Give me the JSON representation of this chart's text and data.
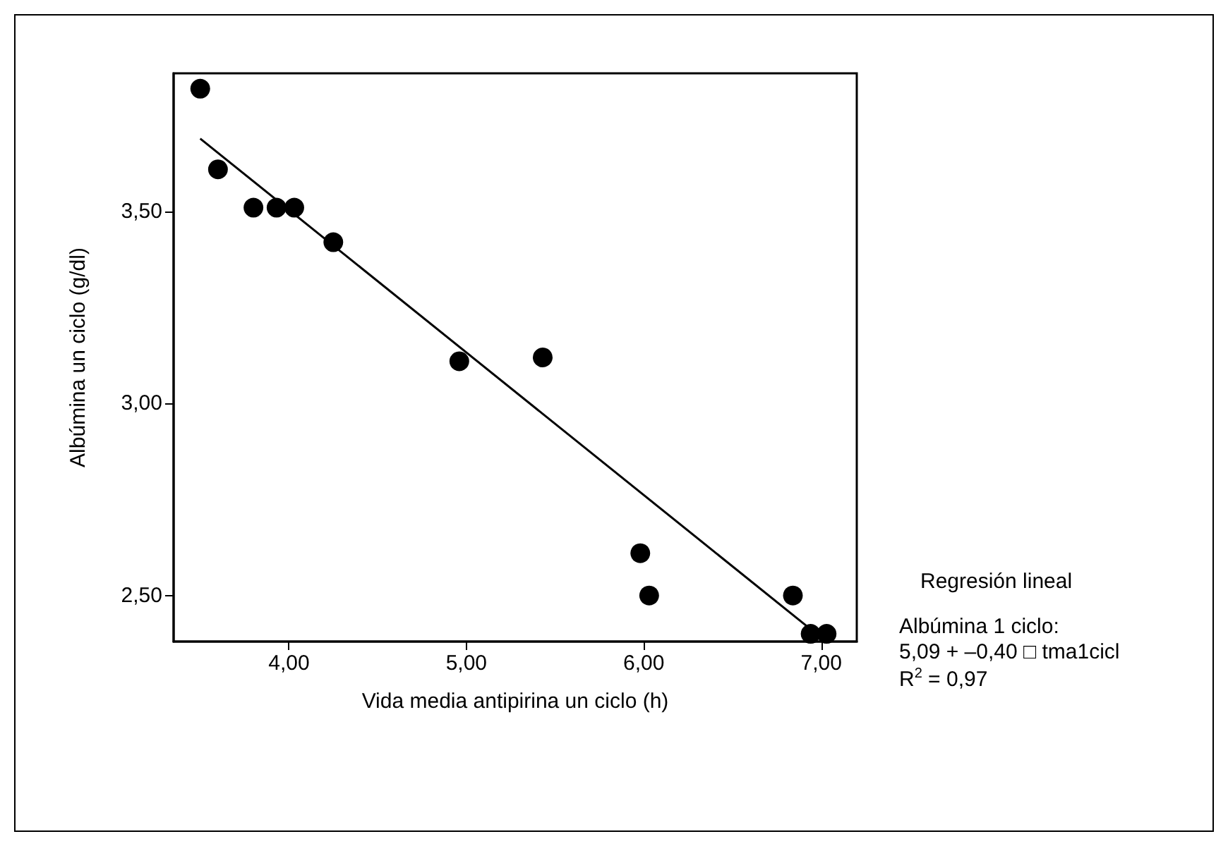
{
  "chart_data": {
    "type": "scatter",
    "xlabel": "Vida media antipirina un ciclo (h)",
    "ylabel": "Albúmina un ciclo (g/dl)",
    "x": [
      3.5,
      3.6,
      3.8,
      3.93,
      4.03,
      4.25,
      4.96,
      5.43,
      5.98,
      6.03,
      6.84,
      6.94,
      7.03
    ],
    "series": [
      {
        "color": "#000000",
        "marker": "circle",
        "values": [
          3.82,
          3.61,
          3.51,
          3.51,
          3.51,
          3.42,
          3.11,
          3.12,
          2.61,
          2.5,
          2.5,
          2.4,
          2.4
        ]
      },
      {
        "type": "line",
        "color": "#000000",
        "marker": "none",
        "line_style": "solid",
        "x": [
          3.5,
          7.0
        ],
        "values": [
          3.69,
          2.39
        ]
      }
    ],
    "xlim": [
      3.35,
      7.2
    ],
    "ylim": [
      2.38,
      3.86
    ],
    "xticks": [
      {
        "value": 4,
        "label": "4,00"
      },
      {
        "value": 5,
        "label": "5,00"
      },
      {
        "value": 6,
        "label": "6,00"
      },
      {
        "value": 7,
        "label": "7,00"
      }
    ],
    "yticks": [
      {
        "value": 2.5,
        "label": "2,50"
      },
      {
        "value": 3,
        "label": "3,00"
      },
      {
        "value": 3.5,
        "label": "3,50"
      }
    ],
    "grid": false,
    "annotations": [
      "Regresión lineal",
      "Albúmina 1 ciclo:",
      "5,09 + –0,40 □ tma1cicl",
      "R$^{2}$ = 0,97"
    ]
  }
}
